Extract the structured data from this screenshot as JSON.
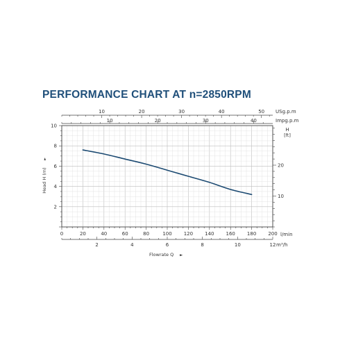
{
  "title": "PERFORMANCE CHART AT n=2850RPM",
  "colors": {
    "title": "#1f4f7a",
    "curve": "#1c4a72",
    "grid_minor": "#dddddd",
    "grid_major": "#bdbdbd",
    "axis": "#444444",
    "text": "#333333"
  },
  "chart_data": {
    "type": "line",
    "title": "PERFORMANCE CHART AT n=2850RPM",
    "grid": true,
    "xlabel": "Flowrate Q",
    "ylabel": "Head H (m)",
    "x_unit": "l/min",
    "xlim": [
      0,
      200
    ],
    "ylim": [
      0,
      10
    ],
    "x_ticks": [
      0,
      20,
      40,
      60,
      80,
      100,
      120,
      140,
      160,
      180,
      200
    ],
    "y_ticks": [
      2,
      4,
      6,
      8,
      10
    ],
    "series": [
      {
        "x": [
          20,
          40,
          60,
          80,
          100,
          120,
          140,
          160,
          180
        ],
        "y": [
          7.6,
          7.2,
          6.7,
          6.2,
          5.6,
          5.0,
          4.4,
          3.7,
          3.2
        ]
      }
    ],
    "secondary_x_axes": [
      {
        "unit": "m³/h",
        "position": "bottom",
        "ticks": [
          2,
          4,
          6,
          8,
          10,
          12
        ],
        "factor": 0.06
      },
      {
        "unit": "Impg.p.m",
        "position": "top",
        "ticks": [
          10,
          20,
          30,
          40
        ],
        "factor": 0.21997
      },
      {
        "unit": "USg.p.m",
        "position": "top",
        "ticks": [
          10,
          20,
          30,
          40,
          50
        ],
        "factor": 0.264172
      }
    ],
    "secondary_y_axis": {
      "unit": "H\n[ft]",
      "position": "right",
      "ticks": [
        10,
        20
      ],
      "factor": 3.28084
    }
  },
  "labels": {
    "x_unit_main": "l/min",
    "x_unit_m3h": "m³/h",
    "x_unit_imp": "Impg.p.m",
    "x_unit_us": "USg.p.m",
    "y_right_h": "H",
    "y_right_ft": "[ft]",
    "flow_label": "Flowrate Q",
    "flow_arrow": "►",
    "head_label": "Head H (m)",
    "head_arrow": "►"
  }
}
